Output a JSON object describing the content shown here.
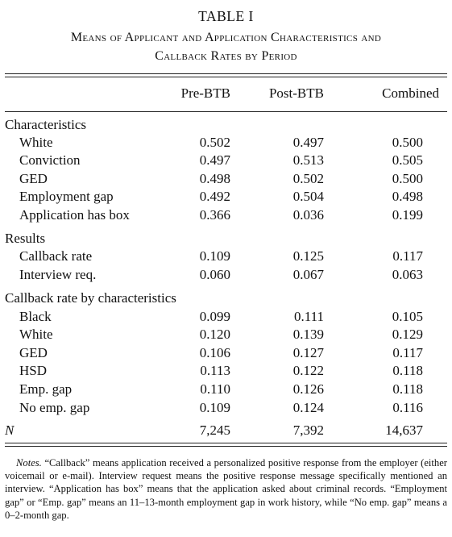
{
  "table": {
    "label": "TABLE I",
    "caption_line1": "Means of Applicant and Application Characteristics and",
    "caption_line2": "Callback Rates by Period",
    "columns": [
      "Pre-BTB",
      "Post-BTB",
      "Combined"
    ],
    "sections": [
      {
        "header": "Characteristics",
        "rows": [
          {
            "label": "White",
            "values": [
              "0.502",
              "0.497",
              "0.500"
            ]
          },
          {
            "label": "Conviction",
            "values": [
              "0.497",
              "0.513",
              "0.505"
            ]
          },
          {
            "label": "GED",
            "values": [
              "0.498",
              "0.502",
              "0.500"
            ]
          },
          {
            "label": "Employment gap",
            "values": [
              "0.492",
              "0.504",
              "0.498"
            ]
          },
          {
            "label": "Application has box",
            "values": [
              "0.366",
              "0.036",
              "0.199"
            ]
          }
        ]
      },
      {
        "header": "Results",
        "rows": [
          {
            "label": "Callback rate",
            "values": [
              "0.109",
              "0.125",
              "0.117"
            ]
          },
          {
            "label": "Interview req.",
            "values": [
              "0.060",
              "0.067",
              "0.063"
            ]
          }
        ]
      },
      {
        "header": "Callback rate by characteristics",
        "rows": [
          {
            "label": "Black",
            "values": [
              "0.099",
              "0.111",
              "0.105"
            ]
          },
          {
            "label": "White",
            "values": [
              "0.120",
              "0.139",
              "0.129"
            ]
          },
          {
            "label": "GED",
            "values": [
              "0.106",
              "0.127",
              "0.117"
            ]
          },
          {
            "label": "HSD",
            "values": [
              "0.113",
              "0.122",
              "0.118"
            ]
          },
          {
            "label": "Emp. gap",
            "values": [
              "0.110",
              "0.126",
              "0.118"
            ]
          },
          {
            "label": "No emp. gap",
            "values": [
              "0.109",
              "0.124",
              "0.116"
            ]
          }
        ]
      }
    ],
    "n_row": {
      "label": "N",
      "values": [
        "7,245",
        "7,392",
        "14,637"
      ]
    }
  },
  "notes": {
    "label": "Notes.",
    "text": "“Callback” means application received a personalized positive response from the employer (either voicemail or e-mail). Interview request means the positive response message specifically mentioned an interview. “Application has box” means that the application asked about criminal records. “Employment gap” or “Emp. gap” means an 11–13-month employment gap in work history, while “No emp. gap” means a 0–2-month gap."
  }
}
